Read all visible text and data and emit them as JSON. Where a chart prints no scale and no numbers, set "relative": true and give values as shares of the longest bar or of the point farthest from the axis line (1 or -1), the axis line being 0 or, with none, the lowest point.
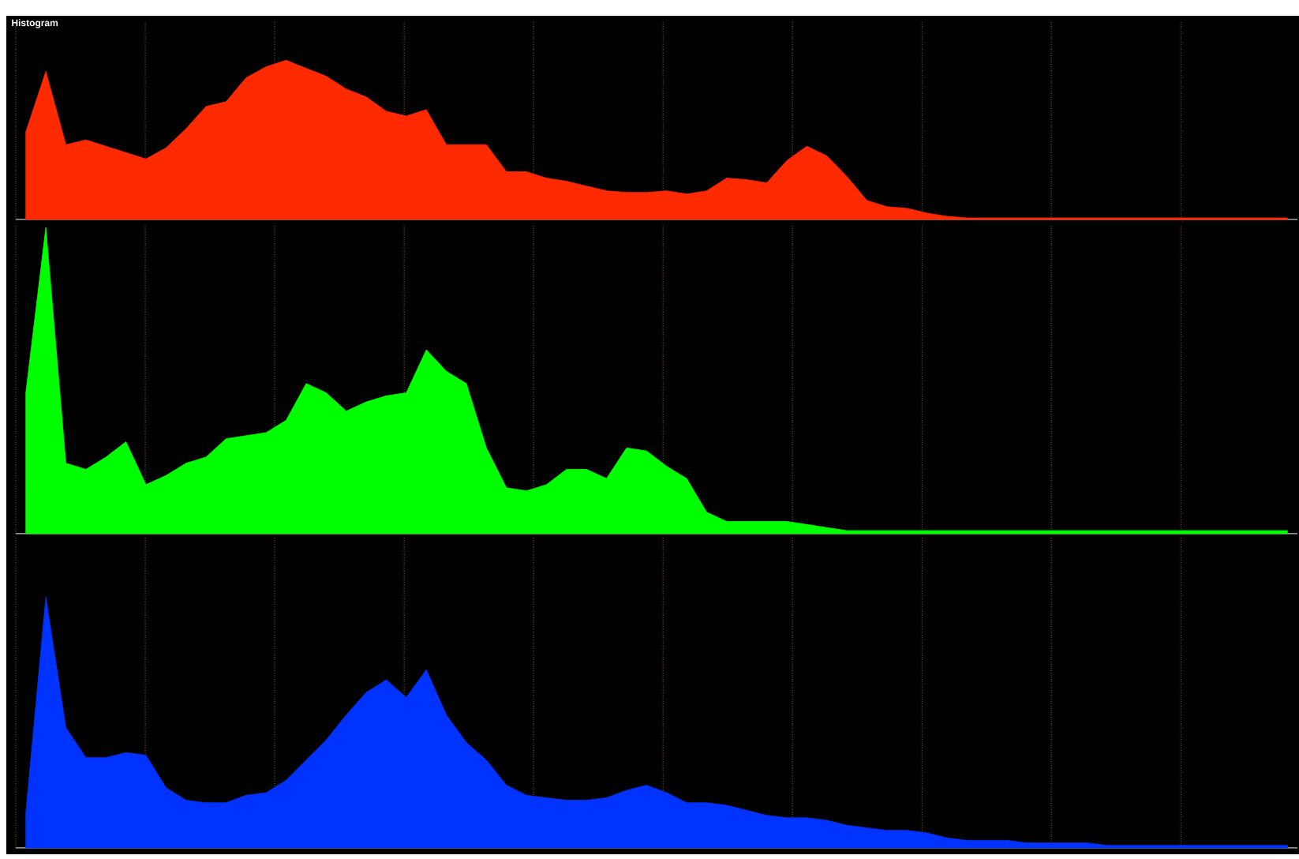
{
  "chart_data": [
    {
      "type": "area",
      "title": "Histogram",
      "relative": true,
      "grid": "x",
      "color": "#ff2a00",
      "categories": [
        null,
        null,
        null,
        null,
        null,
        null,
        null,
        null,
        null,
        null,
        null,
        null,
        null,
        null,
        null,
        null,
        null,
        null,
        null,
        null,
        null,
        null,
        null,
        null,
        null,
        null,
        null,
        null,
        null,
        null,
        null,
        null,
        null,
        null,
        null,
        null,
        null,
        null,
        null,
        null,
        null,
        null,
        null,
        null,
        null,
        null,
        null,
        null,
        null,
        null,
        null,
        null,
        null,
        null,
        null,
        null,
        null,
        null,
        null,
        null,
        null,
        null,
        null,
        null
      ],
      "values": [
        0.55,
        0.93,
        0.47,
        0.5,
        0.46,
        0.42,
        0.38,
        0.45,
        0.57,
        0.71,
        0.74,
        0.89,
        0.96,
        1,
        0.95,
        0.9,
        0.82,
        0.77,
        0.68,
        0.65,
        0.69,
        0.47,
        0.47,
        0.47,
        0.3,
        0.3,
        0.26,
        0.24,
        0.21,
        0.18,
        0.17,
        0.17,
        0.18,
        0.16,
        0.18,
        0.26,
        0.25,
        0.23,
        0.37,
        0.46,
        0.4,
        0.27,
        0.12,
        0.08,
        0.07,
        0.04,
        0.02,
        0.01,
        0.01,
        0.01,
        0.01,
        0.01,
        0.01,
        0.01,
        0.01,
        0.01,
        0.01,
        0.01,
        0.01,
        0.01,
        0.01,
        0.01,
        0.01,
        0.01
      ]
    },
    {
      "type": "area",
      "relative": true,
      "grid": "x",
      "color": "#00ff00",
      "categories": [
        null,
        null,
        null,
        null,
        null,
        null,
        null,
        null,
        null,
        null,
        null,
        null,
        null,
        null,
        null,
        null,
        null,
        null,
        null,
        null,
        null,
        null,
        null,
        null,
        null,
        null,
        null,
        null,
        null,
        null,
        null,
        null,
        null,
        null,
        null,
        null,
        null,
        null,
        null,
        null,
        null,
        null,
        null,
        null,
        null,
        null,
        null,
        null,
        null,
        null,
        null,
        null,
        null,
        null,
        null,
        null,
        null,
        null,
        null,
        null,
        null,
        null,
        null,
        null
      ],
      "values": [
        0.46,
        1,
        0.23,
        0.21,
        0.25,
        0.3,
        0.16,
        0.19,
        0.23,
        0.25,
        0.31,
        0.32,
        0.33,
        0.37,
        0.49,
        0.46,
        0.4,
        0.43,
        0.45,
        0.46,
        0.6,
        0.53,
        0.49,
        0.28,
        0.15,
        0.14,
        0.16,
        0.21,
        0.21,
        0.18,
        0.28,
        0.27,
        0.22,
        0.18,
        0.07,
        0.04,
        0.04,
        0.04,
        0.04,
        0.03,
        0.02,
        0.01,
        0.01,
        0.01,
        0.01,
        0.01,
        0.01,
        0.01,
        0.01,
        0.01,
        0.01,
        0.01,
        0.01,
        0.01,
        0.01,
        0.01,
        0.01,
        0.01,
        0.01,
        0.01,
        0.01,
        0.01,
        0.01,
        0.01
      ]
    },
    {
      "type": "area",
      "relative": true,
      "grid": "x",
      "color": "#0033ff",
      "categories": [
        null,
        null,
        null,
        null,
        null,
        null,
        null,
        null,
        null,
        null,
        null,
        null,
        null,
        null,
        null,
        null,
        null,
        null,
        null,
        null,
        null,
        null,
        null,
        null,
        null,
        null,
        null,
        null,
        null,
        null,
        null,
        null,
        null,
        null,
        null,
        null,
        null,
        null,
        null,
        null,
        null,
        null,
        null,
        null,
        null,
        null,
        null,
        null,
        null,
        null,
        null,
        null,
        null,
        null,
        null,
        null,
        null,
        null,
        null,
        null,
        null,
        null,
        null,
        null
      ],
      "values": [
        0.14,
        1,
        0.48,
        0.36,
        0.36,
        0.38,
        0.37,
        0.24,
        0.19,
        0.18,
        0.18,
        0.21,
        0.22,
        0.27,
        0.35,
        0.43,
        0.53,
        0.62,
        0.67,
        0.6,
        0.71,
        0.53,
        0.42,
        0.35,
        0.25,
        0.21,
        0.2,
        0.19,
        0.19,
        0.2,
        0.23,
        0.25,
        0.22,
        0.18,
        0.18,
        0.17,
        0.15,
        0.13,
        0.12,
        0.12,
        0.11,
        0.09,
        0.08,
        0.07,
        0.07,
        0.06,
        0.04,
        0.03,
        0.03,
        0.03,
        0.02,
        0.02,
        0.02,
        0.02,
        0.01,
        0.01,
        0.01,
        0.01,
        0.01,
        0.01,
        0.01,
        0.01,
        0.01,
        0.01
      ]
    }
  ]
}
